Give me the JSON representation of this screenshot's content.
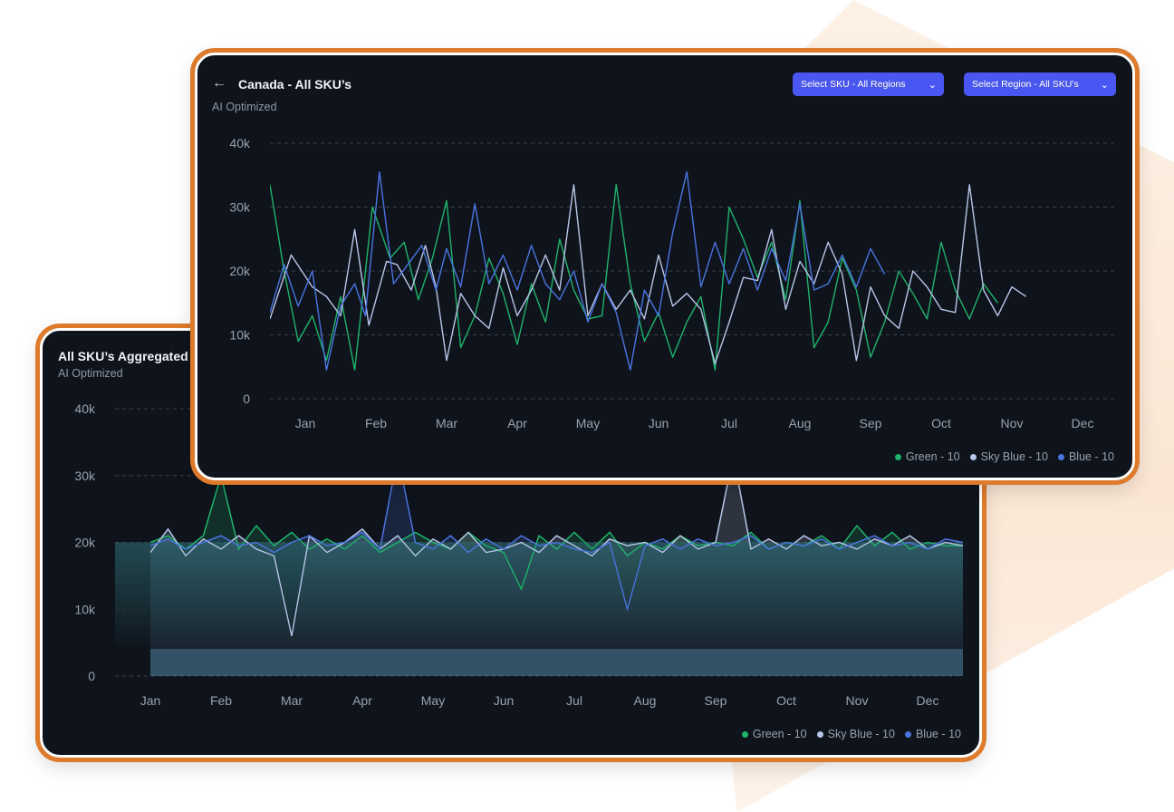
{
  "colors": {
    "green": "#1fb36b",
    "sky_blue": "#b8c6e8",
    "blue": "#4a74e0",
    "accent": "#4a56f2",
    "border": "#dd7a2b"
  },
  "back_card": {
    "title": "All SKU’s Aggregated",
    "subtitle": "AI Optimized"
  },
  "front_card": {
    "back_icon": "←",
    "title": "Canada - All SKU’s",
    "subtitle": "AI Optimized",
    "select_sku_label": "Select SKU - All Regions",
    "select_region_label": "Select Region - All SKU’s",
    "chevron_icon": "chevron-down-icon"
  },
  "chart_data": [
    {
      "type": "area",
      "ylim": [
        0,
        40000
      ],
      "yticks": [
        "0",
        "10k",
        "20k",
        "30k",
        "40k"
      ],
      "categories": [
        "Jan",
        "Feb",
        "Mar",
        "Apr",
        "May",
        "Jun",
        "Jul",
        "Aug",
        "Sep",
        "Oct",
        "Nov",
        "Dec"
      ],
      "legend": [
        "Green - 10",
        "Sky Blue - 10",
        "Blue - 10"
      ],
      "series": [
        {
          "name": "Green - 10",
          "color": "#1fb36b",
          "x": [
            0,
            0.25,
            0.5,
            0.75,
            1.0,
            1.25,
            1.5,
            1.75,
            2.0,
            2.25,
            2.5,
            2.75,
            3.0,
            3.25,
            3.5,
            3.75,
            4.0,
            4.25,
            4.5,
            4.75,
            5.0,
            5.25,
            5.5,
            5.75,
            6.0,
            6.25,
            6.5,
            6.75,
            7.0,
            7.25,
            7.5,
            7.75,
            8.0,
            8.25,
            8.5,
            8.75,
            9.0,
            9.25,
            9.5,
            9.75,
            10.0,
            10.25,
            10.5,
            10.75,
            11.0,
            11.25,
            11.5
          ],
          "values": [
            20000,
            21000,
            19000,
            21000,
            30000,
            19000,
            22500,
            19500,
            21500,
            19000,
            20500,
            19000,
            21000,
            18500,
            20000,
            21500,
            20000,
            19000,
            21500,
            19500,
            18500,
            13000,
            21000,
            19000,
            21500,
            19000,
            21500,
            18000,
            20000,
            19000,
            21000,
            19500,
            20000,
            19500,
            21500,
            19000,
            20000,
            19500,
            21000,
            19000,
            22500,
            19500,
            21500,
            19000,
            20000,
            19500,
            19500
          ]
        },
        {
          "name": "Sky Blue - 10",
          "color": "#b8c6e8",
          "x": [
            0,
            0.25,
            0.5,
            0.75,
            1.0,
            1.25,
            1.5,
            1.75,
            2.0,
            2.25,
            2.5,
            2.75,
            3.0,
            3.25,
            3.5,
            3.75,
            4.0,
            4.25,
            4.5,
            4.75,
            5.0,
            5.25,
            5.5,
            5.75,
            6.0,
            6.25,
            6.5,
            6.75,
            7.0,
            7.25,
            7.5,
            7.75,
            8.0,
            8.25,
            8.5,
            8.75,
            9.0,
            9.25,
            9.5,
            9.75,
            10.0,
            10.25,
            10.5,
            10.75,
            11.0,
            11.25,
            11.5
          ],
          "values": [
            18500,
            22000,
            18000,
            20500,
            19000,
            21000,
            19000,
            18000,
            6000,
            21000,
            18500,
            20000,
            22000,
            19000,
            21000,
            18000,
            20500,
            19000,
            21500,
            18500,
            19000,
            20000,
            18500,
            21000,
            19500,
            18000,
            20500,
            19500,
            20000,
            18500,
            21000,
            19000,
            20000,
            33000,
            19000,
            20500,
            19000,
            21000,
            19500,
            20000,
            19000,
            20500,
            19500,
            21000,
            19000,
            20000,
            19500
          ]
        },
        {
          "name": "Blue - 10",
          "color": "#4a74e0",
          "x": [
            0,
            0.25,
            0.5,
            0.75,
            1.0,
            1.25,
            1.5,
            1.75,
            2.0,
            2.25,
            2.5,
            2.75,
            3.0,
            3.25,
            3.5,
            3.75,
            4.0,
            4.25,
            4.5,
            4.75,
            5.0,
            5.25,
            5.5,
            5.75,
            6.0,
            6.25,
            6.5,
            6.75,
            7.0,
            7.25,
            7.5,
            7.75,
            8.0,
            8.25,
            8.5,
            8.75,
            9.0,
            9.25,
            9.5,
            9.75,
            10.0,
            10.25,
            10.5,
            10.75,
            11.0,
            11.25,
            11.5
          ],
          "values": [
            19500,
            20500,
            19000,
            20000,
            21000,
            19500,
            20000,
            18500,
            20000,
            21000,
            19500,
            20000,
            21500,
            19000,
            33000,
            20000,
            19000,
            21000,
            18500,
            20500,
            19000,
            21000,
            19500,
            20000,
            19000,
            18500,
            20000,
            10000,
            19500,
            20500,
            19000,
            20500,
            19500,
            20000,
            21000,
            19000,
            20000,
            19500,
            20500,
            19000,
            20000,
            21000,
            19500,
            20000,
            19000,
            20500,
            20000
          ]
        }
      ]
    },
    {
      "type": "line",
      "ylim": [
        0,
        40000
      ],
      "yticks": [
        "0",
        "10k",
        "20k",
        "30k",
        "40k"
      ],
      "categories": [
        "Jan",
        "Feb",
        "Mar",
        "Apr",
        "May",
        "Jun",
        "Jul",
        "Aug",
        "Sep",
        "Oct",
        "Nov",
        "Dec"
      ],
      "legend": [
        "Green - 10",
        "Sky Blue - 10",
        "Blue - 10"
      ],
      "series": [
        {
          "name": "Green - 10",
          "color": "#1fb36b",
          "x": [
            -0.5,
            -0.3,
            -0.1,
            0.1,
            0.3,
            0.5,
            0.7,
            0.95,
            1.2,
            1.4,
            1.6,
            1.8,
            2.0,
            2.2,
            2.4,
            2.6,
            2.8,
            3.0,
            3.2,
            3.4,
            3.6,
            3.8,
            4.0,
            4.2,
            4.4,
            4.6,
            4.8,
            5.0,
            5.2,
            5.4,
            5.6,
            5.8,
            6.0,
            6.2,
            6.4,
            6.6,
            6.8,
            7.0,
            7.2,
            7.4,
            7.6,
            7.8,
            8.0,
            8.2,
            8.4,
            8.6,
            8.8,
            9.0,
            9.2,
            9.4,
            9.6,
            9.8,
            10.0,
            10.2,
            10.4,
            10.6,
            10.8,
            11.0,
            11.2,
            11.4
          ],
          "values": [
            33500,
            20000,
            9000,
            13000,
            6000,
            16000,
            4500,
            30000,
            22000,
            24500,
            15500,
            22000,
            31000,
            8000,
            13000,
            22000,
            16500,
            8500,
            18000,
            12000,
            25000,
            17000,
            12500,
            13000,
            33500,
            18000,
            9000,
            13500,
            6500,
            12000,
            16000,
            4500,
            30000,
            25000,
            19000,
            24500,
            15500,
            31000,
            8000,
            12000,
            22000,
            17000,
            6500,
            12000,
            20000,
            16500,
            12500,
            24500,
            17000,
            12500,
            18000,
            15000,
            null,
            null,
            null,
            null,
            null,
            null,
            null,
            null
          ]
        },
        {
          "name": "Sky Blue - 10",
          "color": "#b8c6e8",
          "x": [
            -0.5,
            -0.2,
            0.1,
            0.3,
            0.5,
            0.7,
            0.9,
            1.15,
            1.3,
            1.5,
            1.7,
            1.85,
            2.0,
            2.2,
            2.4,
            2.6,
            2.8,
            3.0,
            3.2,
            3.4,
            3.6,
            3.8,
            4.0,
            4.2,
            4.4,
            4.6,
            4.8,
            5.0,
            5.2,
            5.4,
            5.6,
            5.8,
            6.0,
            6.2,
            6.4,
            6.6,
            6.8,
            7.0,
            7.2,
            7.4,
            7.6,
            7.8,
            8.0,
            8.2,
            8.4,
            8.6,
            8.8,
            9.0,
            9.2,
            9.4,
            9.6,
            9.8,
            10.0,
            10.2,
            10.4,
            10.6,
            10.8,
            11.0,
            11.2,
            11.4
          ],
          "values": [
            12500,
            22500,
            17500,
            16000,
            13000,
            26500,
            11500,
            21500,
            21000,
            17000,
            24000,
            17500,
            6000,
            16500,
            13000,
            11000,
            20500,
            13000,
            17000,
            22500,
            17000,
            33500,
            13000,
            18000,
            14000,
            17000,
            12500,
            22500,
            14500,
            16500,
            14000,
            5500,
            12000,
            19000,
            18500,
            26500,
            14000,
            21500,
            18000,
            24500,
            19500,
            6000,
            17500,
            13000,
            11000,
            20000,
            17500,
            14000,
            13500,
            33500,
            17000,
            13000,
            17500,
            16000,
            null,
            null,
            null,
            null,
            null,
            null
          ]
        },
        {
          "name": "Blue - 10",
          "color": "#4a74e0",
          "x": [
            -0.5,
            -0.3,
            -0.1,
            0.1,
            0.3,
            0.5,
            0.7,
            0.85,
            1.05,
            1.25,
            1.45,
            1.65,
            1.85,
            2.0,
            2.2,
            2.4,
            2.6,
            2.8,
            3.0,
            3.2,
            3.4,
            3.6,
            3.8,
            4.0,
            4.2,
            4.4,
            4.6,
            4.8,
            5.0,
            5.2,
            5.4,
            5.6,
            5.8,
            6.0,
            6.2,
            6.4,
            6.6,
            6.8,
            7.0,
            7.2,
            7.4,
            7.6,
            7.8,
            8.0,
            8.2,
            8.4,
            8.6,
            8.8,
            9.0,
            9.2,
            9.4,
            9.6,
            9.8,
            10.0,
            10.2,
            10.4,
            10.6,
            10.8,
            11.0,
            11.2
          ],
          "values": [
            13500,
            21000,
            14500,
            20000,
            4500,
            14500,
            18000,
            13000,
            35500,
            18000,
            21000,
            24000,
            17000,
            23500,
            17500,
            30500,
            18000,
            22500,
            17000,
            24000,
            18000,
            15500,
            20000,
            12000,
            18000,
            13500,
            4500,
            17000,
            13000,
            26000,
            35500,
            17500,
            24500,
            18000,
            23500,
            17000,
            23500,
            18500,
            30500,
            17000,
            18000,
            22500,
            17500,
            23500,
            19500,
            null,
            null,
            null,
            null,
            null,
            null,
            null,
            null,
            null,
            null,
            null,
            null,
            null,
            null,
            null
          ]
        }
      ]
    }
  ]
}
